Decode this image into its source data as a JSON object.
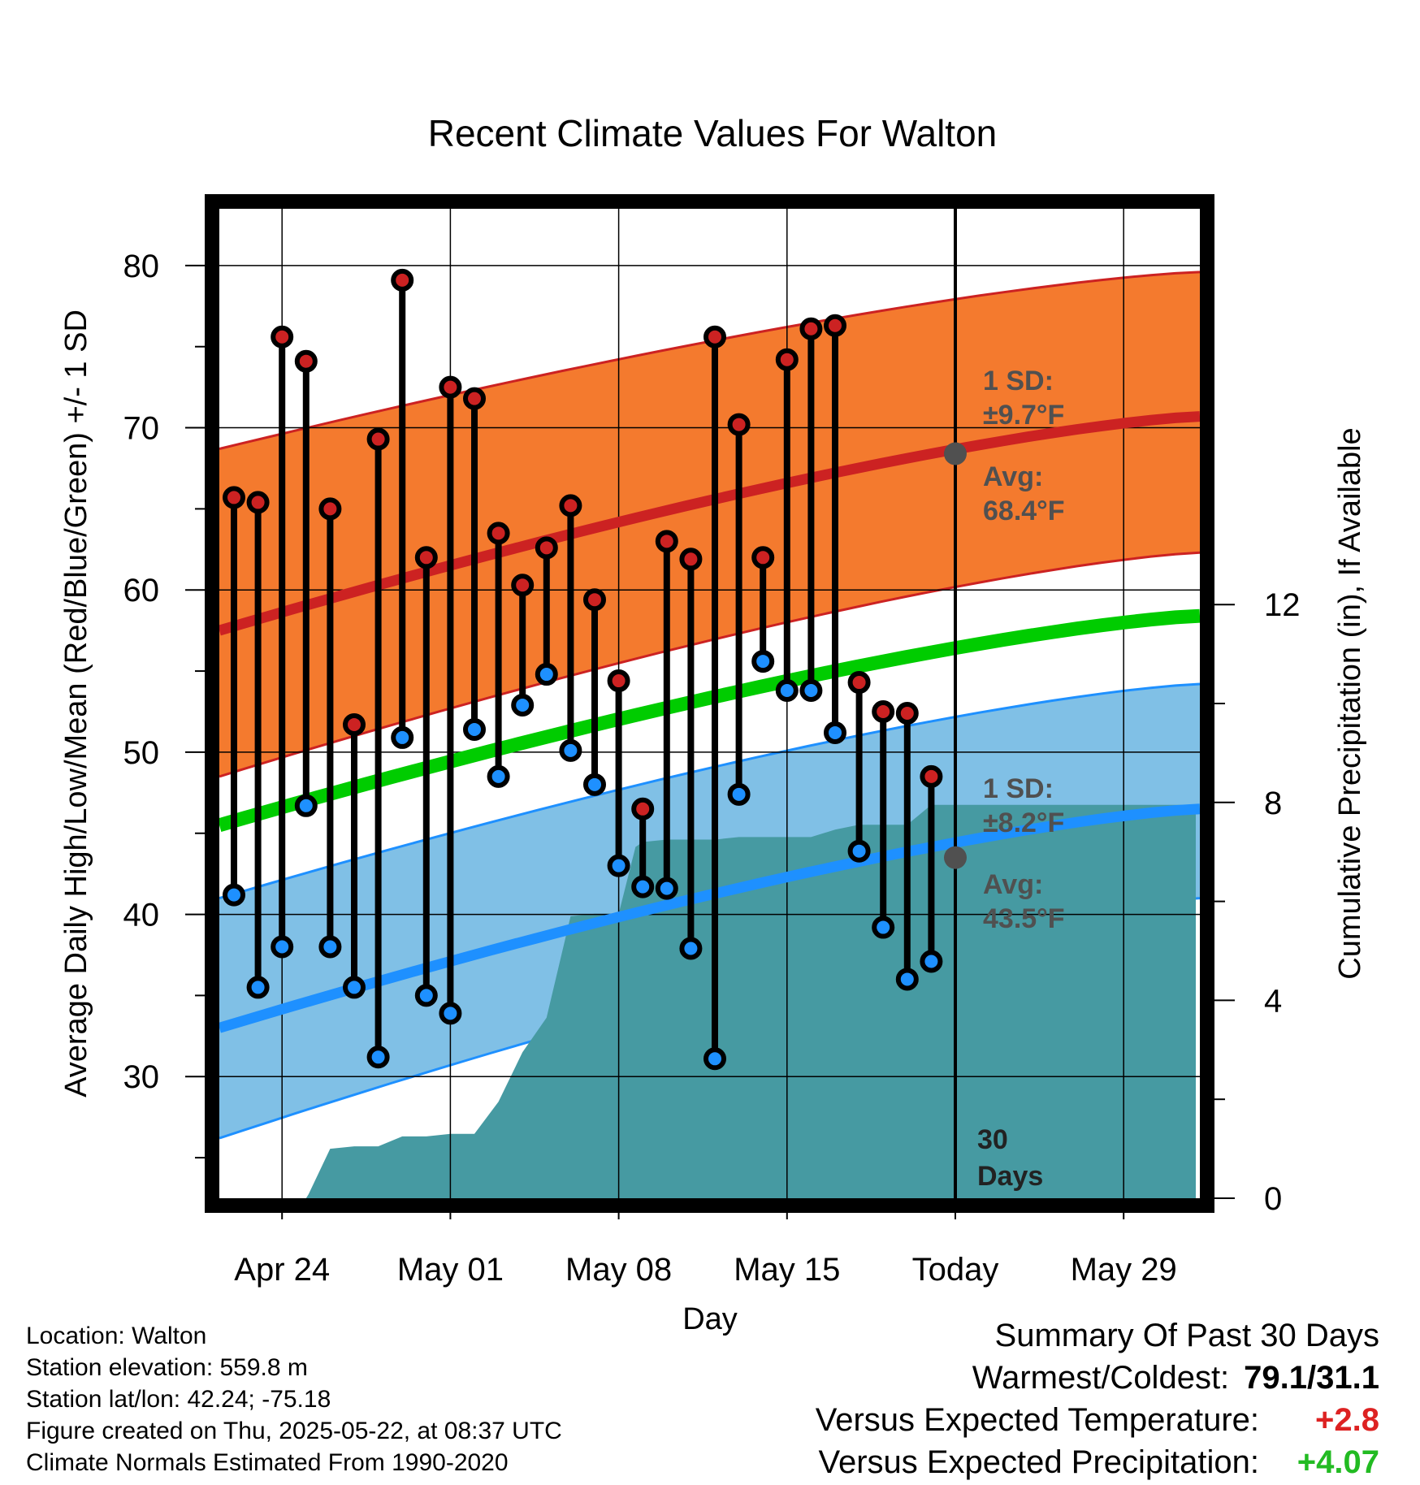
{
  "chart_data": {
    "type": "line",
    "title": "Recent Climate Values For Walton",
    "xlabel": "Day",
    "ylabel": "Average Daily High/Low/Mean (Red/Blue/Green) +/- 1 SD",
    "ylabel_right": "Cumulative Precipitation (in), If Available",
    "ylim": [
      22.5,
      83.5
    ],
    "y_ticks": [
      30,
      40,
      50,
      60,
      70,
      80
    ],
    "y2lim": [
      0,
      20
    ],
    "y2_ticks": [
      0,
      4,
      8,
      12
    ],
    "x_ticks": [
      "Apr 24",
      "May 01",
      "May 08",
      "May 15",
      "Today",
      "May 29"
    ],
    "grid": true,
    "normals": {
      "high_avg_start": 57.5,
      "high_avg_end": 70.7,
      "high_sd_upper_start": 68.7,
      "high_sd_upper_end": 79.6,
      "high_sd_lower_start": 48.5,
      "high_sd_lower_end": 62.3,
      "mean_start": 45.5,
      "mean_end": 58.4,
      "low_avg_start": 33.0,
      "low_avg_end": 46.5,
      "low_sd_upper_start": 41.0,
      "low_sd_upper_end": 54.2,
      "low_sd_lower_start": 26.2,
      "low_sd_lower_end": 41.0
    },
    "daily_highs": [
      65.7,
      65.4,
      75.6,
      74.1,
      65.0,
      51.7,
      69.3,
      79.1,
      62.0,
      72.5,
      71.8,
      63.5,
      60.3,
      62.6,
      65.2,
      59.4,
      54.4,
      46.5,
      63.0,
      61.9,
      75.6,
      70.2,
      62.0,
      74.2,
      76.1,
      76.3,
      54.3,
      52.5,
      52.4,
      48.5
    ],
    "daily_lows": [
      41.2,
      35.5,
      38.0,
      46.7,
      38.0,
      35.5,
      31.2,
      50.9,
      35.0,
      33.9,
      51.4,
      48.5,
      52.9,
      54.8,
      50.1,
      48.0,
      43.0,
      41.7,
      41.6,
      37.9,
      31.1,
      47.4,
      55.6,
      53.8,
      53.8,
      51.2,
      43.9,
      39.2,
      36.0,
      37.1
    ],
    "precip_cumulative": [
      [
        0,
        0.0
      ],
      [
        1,
        0.0
      ],
      [
        2,
        0.0
      ],
      [
        3,
        0.0
      ],
      [
        3.1,
        0.08
      ],
      [
        4,
        1.0
      ],
      [
        5,
        1.05
      ],
      [
        6,
        1.05
      ],
      [
        7,
        1.25
      ],
      [
        8,
        1.25
      ],
      [
        9,
        1.3
      ],
      [
        10,
        1.3
      ],
      [
        11,
        1.95
      ],
      [
        12,
        2.95
      ],
      [
        12.5,
        3.3
      ],
      [
        13,
        3.65
      ],
      [
        14,
        5.7
      ],
      [
        15,
        5.75
      ],
      [
        16,
        5.75
      ],
      [
        16.7,
        7.1
      ],
      [
        17,
        7.2
      ],
      [
        18,
        7.25
      ],
      [
        20,
        7.25
      ],
      [
        21,
        7.3
      ],
      [
        22,
        7.3
      ],
      [
        23,
        7.3
      ],
      [
        24,
        7.3
      ],
      [
        25,
        7.45
      ],
      [
        26,
        7.55
      ],
      [
        27,
        7.55
      ],
      [
        28,
        7.55
      ],
      [
        29,
        7.95
      ],
      [
        30,
        7.95
      ],
      [
        40,
        7.95
      ]
    ],
    "annotations": {
      "high_sd_label": "1 SD:",
      "high_sd_value": "±9.7°F",
      "high_avg_label": "Avg:",
      "high_avg_value": "68.4°F",
      "low_sd_label": "1 SD:",
      "low_sd_value": "±8.2°F",
      "low_avg_label": "Avg:",
      "low_avg_value": "43.5°F",
      "days_count": "30",
      "days_label": "Days",
      "today_high_avg": 68.4,
      "today_low_avg": 43.5
    },
    "colors": {
      "high_band": "#f47a2e",
      "high_line": "#cc2222",
      "mean_line": "#00cc00",
      "low_band": "#80c0e6",
      "low_line": "#1e90ff",
      "precip_fill": "#469aa2",
      "high_dot": "#cc2222",
      "low_dot": "#1e90ff"
    }
  },
  "footer": {
    "location": "Location: Walton",
    "elevation": "Station elevation: 559.8 m",
    "latlon": "Station lat/lon: 42.24; -75.18",
    "created": "Figure created on Thu, 2025-05-22, at 08:37 UTC",
    "normals": "Climate Normals Estimated From 1990-2020"
  },
  "summary": {
    "title": "Summary Of Past 30 Days",
    "warmest_label": "Warmest/Coldest:",
    "warmest_value": "79.1/31.1",
    "temp_label": "Versus Expected Temperature:",
    "temp_value": "+2.8",
    "temp_color": "#dd2222",
    "precip_label": "Versus Expected Precipitation:",
    "precip_value": "+4.07",
    "precip_color": "#22bb22"
  }
}
